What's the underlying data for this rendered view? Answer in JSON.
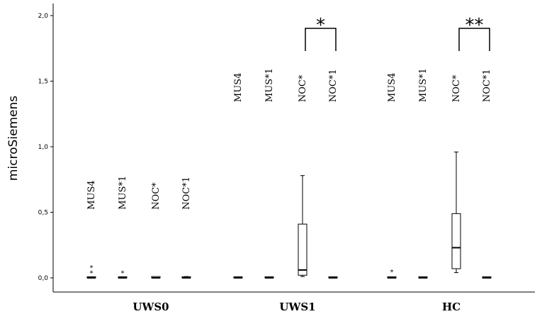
{
  "chart_data": {
    "type": "boxplot",
    "ylabel": "microSiemens",
    "ylim": [
      0,
      2.0
    ],
    "yticks": [
      "0,0",
      "0,5",
      "1,0",
      "1,5",
      "2,0"
    ],
    "yticks_values": [
      0,
      0.5,
      1.0,
      1.5,
      2.0
    ],
    "groups": [
      {
        "name": "UWS0",
        "boxes": [
          {
            "label": "MUS4",
            "min": 0.0,
            "q1": 0.0,
            "median": 0.0,
            "q3": 0.0,
            "max": 0.0,
            "outliers": [
              0.04,
              0.08
            ]
          },
          {
            "label": "MUS*1",
            "min": 0.0,
            "q1": 0.0,
            "median": 0.0,
            "q3": 0.0,
            "max": 0.0,
            "outliers": [
              0.04
            ]
          },
          {
            "label": "NOC*",
            "min": 0.0,
            "q1": 0.0,
            "median": 0.0,
            "q3": 0.01,
            "max": 0.01,
            "outliers": []
          },
          {
            "label": "NOC*1",
            "min": 0.0,
            "q1": 0.0,
            "median": 0.0,
            "q3": 0.0,
            "max": 0.01,
            "outliers": []
          }
        ]
      },
      {
        "name": "UWS1",
        "significance": "*",
        "boxes": [
          {
            "label": "MUS4",
            "min": 0.0,
            "q1": 0.0,
            "median": 0.0,
            "q3": 0.0,
            "max": 0.0,
            "outliers": []
          },
          {
            "label": "MUS*1",
            "min": 0.0,
            "q1": 0.0,
            "median": 0.0,
            "q3": 0.0,
            "max": 0.0,
            "outliers": []
          },
          {
            "label": "NOC*",
            "min": 0.01,
            "q1": 0.02,
            "median": 0.06,
            "q3": 0.41,
            "max": 0.78,
            "outliers": []
          },
          {
            "label": "NOC*1",
            "min": 0.0,
            "q1": 0.0,
            "median": 0.0,
            "q3": 0.0,
            "max": 0.0,
            "outliers": []
          }
        ]
      },
      {
        "name": "HC",
        "significance": "**",
        "boxes": [
          {
            "label": "MUS4",
            "min": 0.0,
            "q1": 0.0,
            "median": 0.0,
            "q3": 0.0,
            "max": 0.0,
            "outliers": [
              0.05
            ]
          },
          {
            "label": "MUS*1",
            "min": 0.0,
            "q1": 0.0,
            "median": 0.0,
            "q3": 0.0,
            "max": 0.0,
            "outliers": []
          },
          {
            "label": "NOC*",
            "min": 0.04,
            "q1": 0.07,
            "median": 0.23,
            "q3": 0.49,
            "max": 0.96,
            "outliers": []
          },
          {
            "label": "NOC*1",
            "min": 0.0,
            "q1": 0.0,
            "median": 0.0,
            "q3": 0.0,
            "max": 0.0,
            "outliers": []
          }
        ]
      }
    ]
  }
}
